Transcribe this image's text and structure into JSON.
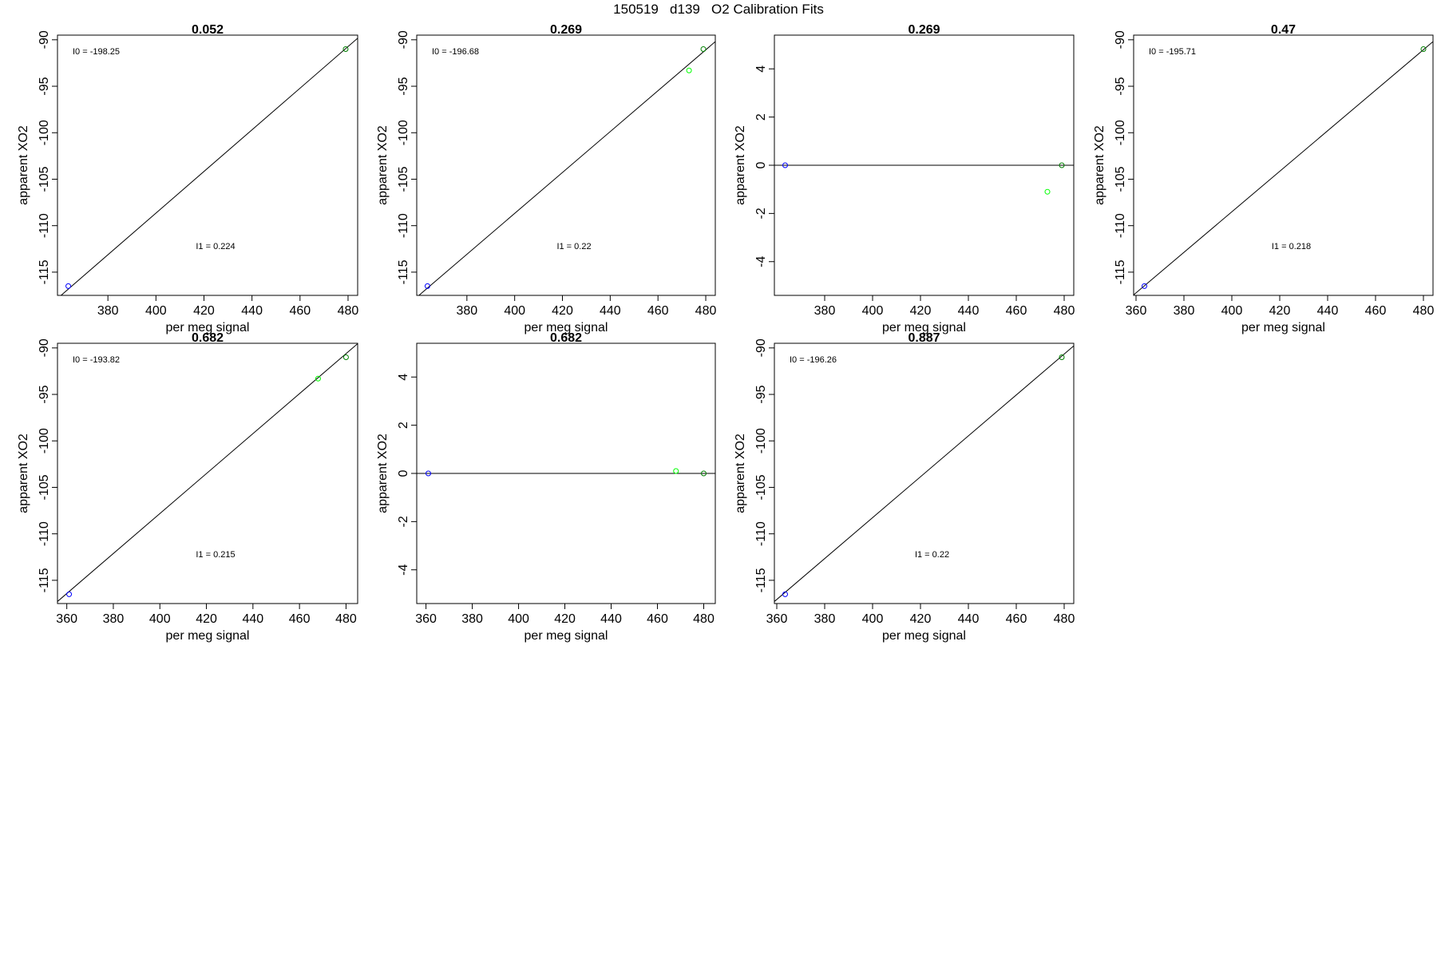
{
  "page": {
    "title": "150519   d139   O2 Calibration Fits"
  },
  "colors": {
    "axis": "#000000",
    "fit_line": "#000000",
    "point_low": "#0000ff",
    "point_mid": "#00ff00",
    "point_high": "#008000"
  },
  "chart_data": [
    {
      "type": "scatter",
      "title": "0.052",
      "xlabel": "per meg signal",
      "ylabel": "apparent XO2",
      "xlim": [
        359,
        484
      ],
      "ylim": [
        -117.5,
        -89.5
      ],
      "xticks": [
        380,
        400,
        420,
        440,
        460,
        480
      ],
      "yticks": [
        -115,
        -110,
        -105,
        -100,
        -95,
        -90
      ],
      "annotations": {
        "intercept": "I0 =  -198.25",
        "slope": "I1 =  0.224"
      },
      "points": [
        {
          "x": 363.5,
          "y": -116.5,
          "color": "#0000ff"
        },
        {
          "x": 479.0,
          "y": -91.0,
          "color": "#008000"
        }
      ],
      "fit_line": {
        "slope": 0.224,
        "intercept": -198.25
      }
    },
    {
      "type": "scatter",
      "title": "0.269",
      "xlabel": "per meg signal",
      "ylabel": "apparent XO2",
      "xlim": [
        359,
        484
      ],
      "ylim": [
        -117.5,
        -89.5
      ],
      "xticks": [
        380,
        400,
        420,
        440,
        460,
        480
      ],
      "yticks": [
        -115,
        -110,
        -105,
        -100,
        -95,
        -90
      ],
      "annotations": {
        "intercept": "I0 =  -196.68",
        "slope": "I1 =  0.22"
      },
      "points": [
        {
          "x": 363.5,
          "y": -116.5,
          "color": "#0000ff"
        },
        {
          "x": 473.0,
          "y": -93.3,
          "color": "#00ff00"
        },
        {
          "x": 479.0,
          "y": -91.0,
          "color": "#008000"
        }
      ],
      "fit_line": {
        "slope": 0.22,
        "intercept": -196.68
      }
    },
    {
      "type": "scatter",
      "title": "0.269",
      "xlabel": "per meg signal",
      "ylabel": "apparent XO2",
      "xlim": [
        359,
        484
      ],
      "ylim": [
        -5.4,
        5.4
      ],
      "xticks": [
        380,
        400,
        420,
        440,
        460,
        480
      ],
      "yticks": [
        -4,
        -2,
        0,
        2,
        4
      ],
      "annotations": {
        "intercept": "",
        "slope": ""
      },
      "points": [
        {
          "x": 363.5,
          "y": 0.0,
          "color": "#0000ff"
        },
        {
          "x": 473.0,
          "y": -1.1,
          "color": "#00ff00"
        },
        {
          "x": 479.0,
          "y": 0.0,
          "color": "#008000"
        }
      ],
      "fit_line": {
        "slope": 0,
        "intercept": 0
      }
    },
    {
      "type": "scatter",
      "title": "0.47",
      "xlabel": "per meg signal",
      "ylabel": "apparent XO2",
      "xlim": [
        359,
        484
      ],
      "ylim": [
        -117.5,
        -89.5
      ],
      "xticks": [
        360,
        380,
        400,
        420,
        440,
        460,
        480
      ],
      "yticks": [
        -115,
        -110,
        -105,
        -100,
        -95,
        -90
      ],
      "annotations": {
        "intercept": "I0 =  -195.71",
        "slope": "I1 =  0.218"
      },
      "points": [
        {
          "x": 363.5,
          "y": -116.5,
          "color": "#0000ff"
        },
        {
          "x": 480.0,
          "y": -91.0,
          "color": "#008000"
        }
      ],
      "fit_line": {
        "slope": 0.218,
        "intercept": -195.71
      }
    },
    {
      "type": "scatter",
      "title": "0.682",
      "xlabel": "per meg signal",
      "ylabel": "apparent XO2",
      "xlim": [
        356,
        485
      ],
      "ylim": [
        -117.5,
        -89.5
      ],
      "xticks": [
        360,
        380,
        400,
        420,
        440,
        460,
        480
      ],
      "yticks": [
        -115,
        -110,
        -105,
        -100,
        -95,
        -90
      ],
      "annotations": {
        "intercept": "I0 =  -193.82",
        "slope": "I1 =  0.215"
      },
      "points": [
        {
          "x": 361.0,
          "y": -116.5,
          "color": "#0000ff"
        },
        {
          "x": 468.0,
          "y": -93.3,
          "color": "#00ff00"
        },
        {
          "x": 480.0,
          "y": -91.0,
          "color": "#008000"
        }
      ],
      "fit_line": {
        "slope": 0.215,
        "intercept": -193.82
      }
    },
    {
      "type": "scatter",
      "title": "0.682",
      "xlabel": "per meg signal",
      "ylabel": "apparent XO2",
      "xlim": [
        356,
        485
      ],
      "ylim": [
        -5.4,
        5.4
      ],
      "xticks": [
        360,
        380,
        400,
        420,
        440,
        460,
        480
      ],
      "yticks": [
        -4,
        -2,
        0,
        2,
        4
      ],
      "annotations": {
        "intercept": "",
        "slope": ""
      },
      "points": [
        {
          "x": 361.0,
          "y": 0.0,
          "color": "#0000ff"
        },
        {
          "x": 468.0,
          "y": 0.1,
          "color": "#00ff00"
        },
        {
          "x": 480.0,
          "y": 0.0,
          "color": "#008000"
        }
      ],
      "fit_line": {
        "slope": 0,
        "intercept": 0
      }
    },
    {
      "type": "scatter",
      "title": "0.887",
      "xlabel": "per meg signal",
      "ylabel": "apparent XO2",
      "xlim": [
        359,
        484
      ],
      "ylim": [
        -117.5,
        -89.5
      ],
      "xticks": [
        360,
        380,
        400,
        420,
        440,
        460,
        480
      ],
      "yticks": [
        -115,
        -110,
        -105,
        -100,
        -95,
        -90
      ],
      "annotations": {
        "intercept": "I0 =  -196.26",
        "slope": "I1 =  0.22"
      },
      "points": [
        {
          "x": 363.5,
          "y": -116.5,
          "color": "#0000ff"
        },
        {
          "x": 479.0,
          "y": -91.0,
          "color": "#008000"
        }
      ],
      "fit_line": {
        "slope": 0.22,
        "intercept": -196.26
      }
    }
  ]
}
